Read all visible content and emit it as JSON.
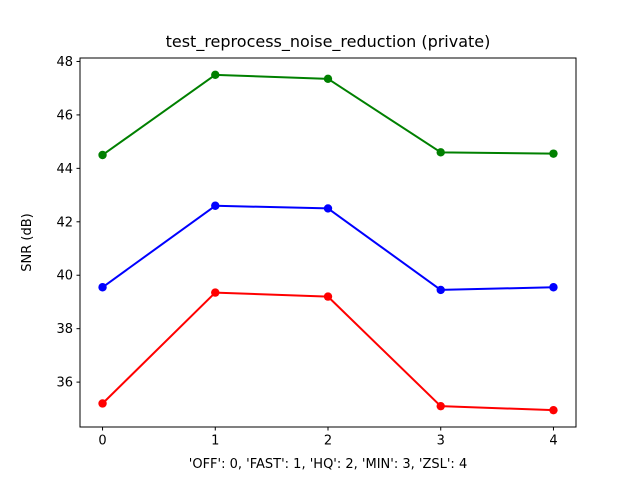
{
  "figure": {
    "background": "#ffffff",
    "text_color": "#000000",
    "spine_color": "#000000"
  },
  "chart_data": {
    "type": "line",
    "title": "test_reprocess_noise_reduction (private)",
    "xlabel": "'OFF': 0, 'FAST': 1, 'HQ': 2, 'MIN': 3, 'ZSL': 4",
    "ylabel": "SNR (dB)",
    "x": [
      0,
      1,
      2,
      3,
      4
    ],
    "series": [
      {
        "name": "green",
        "color": "#008000",
        "marker": "circle",
        "values": [
          44.5,
          47.5,
          47.35,
          44.6,
          44.55
        ]
      },
      {
        "name": "blue",
        "color": "#0000ff",
        "marker": "circle",
        "values": [
          39.55,
          42.6,
          42.5,
          39.45,
          39.55
        ]
      },
      {
        "name": "red",
        "color": "#ff0000",
        "marker": "circle",
        "values": [
          35.2,
          39.35,
          39.2,
          35.1,
          34.95
        ]
      }
    ],
    "xtick_labels": [
      "0",
      "1",
      "2",
      "3",
      "4"
    ],
    "xtick_values": [
      0,
      1,
      2,
      3,
      4
    ],
    "ytick_labels": [
      "36",
      "38",
      "40",
      "42",
      "44",
      "46",
      "48"
    ],
    "ytick_values": [
      36,
      38,
      40,
      42,
      44,
      46,
      48
    ],
    "xlim": [
      -0.2,
      4.2
    ],
    "ylim": [
      34.32,
      48.13
    ],
    "grid": false,
    "legend": null
  }
}
